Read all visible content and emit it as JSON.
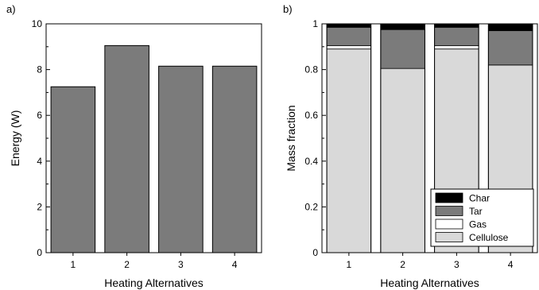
{
  "chart_data": [
    {
      "type": "bar",
      "panel_label": "a)",
      "categories": [
        "1",
        "2",
        "3",
        "4"
      ],
      "values": [
        7.25,
        9.05,
        8.15,
        8.15
      ],
      "xlabel": "Heating Alternatives",
      "ylabel": "Energy (W)",
      "ylim": [
        0,
        10
      ],
      "yticks": [
        "0",
        "2",
        "4",
        "6",
        "8",
        "10"
      ],
      "colors": {
        "bar": "#7b7b7b"
      },
      "grid": false
    },
    {
      "type": "bar",
      "stacked": true,
      "panel_label": "b)",
      "categories": [
        "1",
        "2",
        "3",
        "4"
      ],
      "series": [
        {
          "name": "Cellulose",
          "values": [
            0.89,
            0.805,
            0.89,
            0.82
          ],
          "color": "#d9d9d9"
        },
        {
          "name": "Gas",
          "values": [
            0.015,
            0.0,
            0.015,
            0.0
          ],
          "color": "#ffffff"
        },
        {
          "name": "Tar",
          "values": [
            0.08,
            0.17,
            0.08,
            0.15
          ],
          "color": "#7b7b7b"
        },
        {
          "name": "Char",
          "values": [
            0.015,
            0.025,
            0.015,
            0.03
          ],
          "color": "#000000"
        }
      ],
      "legend_order": [
        "Char",
        "Tar",
        "Gas",
        "Cellulose"
      ],
      "legend_placement": "bottom-right",
      "xlabel": "Heating Alternatives",
      "ylabel": "Mass fraction",
      "ylim": [
        0,
        1
      ],
      "yticks": [
        "0",
        "0.2",
        "0.4",
        "0.6",
        "0.8",
        "1"
      ],
      "grid": false
    }
  ]
}
